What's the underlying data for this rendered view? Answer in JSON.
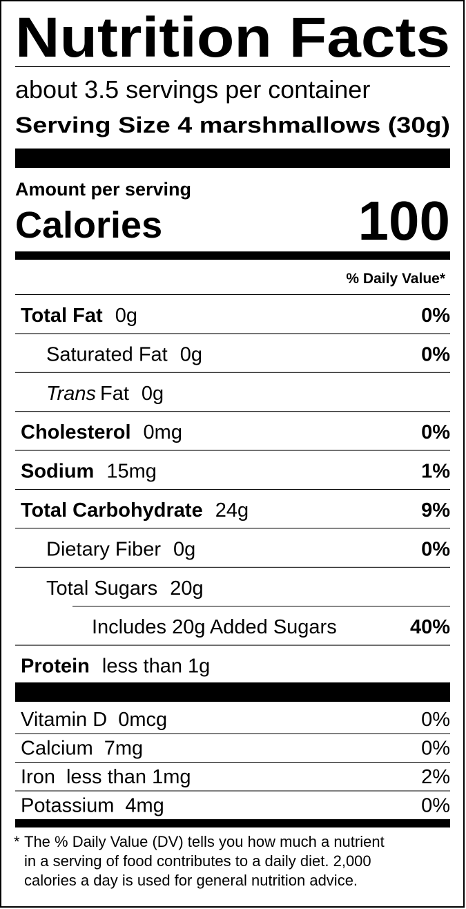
{
  "header": {
    "title": "Nutrition Facts",
    "servings": "about 3.5 servings per container",
    "serving_size": "Serving Size 4 marshmallows (30g)"
  },
  "calories": {
    "label_top": "Amount per serving",
    "label": "Calories",
    "value": "100"
  },
  "daily_value_header": "% Daily Value*",
  "nutrients": [
    {
      "name": "Total Fat",
      "amount": "0g",
      "dv": "0%",
      "sub": [
        {
          "name": "Saturated Fat",
          "amount": "0g",
          "dv": "0%"
        },
        {
          "name_italic": "Trans",
          "name": "Fat",
          "amount": "0g"
        }
      ]
    },
    {
      "name": "Cholesterol",
      "amount": "0mg",
      "dv": "0%"
    },
    {
      "name": "Sodium",
      "amount": "15mg",
      "dv": "1%"
    },
    {
      "name": "Total Carbohydrate",
      "amount": "24g",
      "dv": "9%",
      "sub": [
        {
          "name": "Dietary Fiber",
          "amount": "0g",
          "dv": "0%"
        },
        {
          "name": "Total Sugars",
          "amount": "20g",
          "sub": [
            {
              "name": "Includes 20g Added Sugars",
              "dv": "40%"
            }
          ]
        }
      ]
    },
    {
      "name": "Protein",
      "amount": "less than 1g"
    }
  ],
  "vitamins": [
    {
      "name": "Vitamin D",
      "amount": "0mcg",
      "dv": "0%"
    },
    {
      "name": "Calcium",
      "amount": "7mg",
      "dv": "0%"
    },
    {
      "name": "Iron",
      "amount": "less than 1mg",
      "dv": "2%"
    },
    {
      "name": "Potassium",
      "amount": "4mg",
      "dv": "0%"
    }
  ],
  "footnote": {
    "mark": "*",
    "lines": [
      "The % Daily Value (DV) tells you how much a nutrient",
      "in a serving of food contributes to a daily diet. 2,000",
      "calories a day is used for general nutrition advice."
    ]
  }
}
